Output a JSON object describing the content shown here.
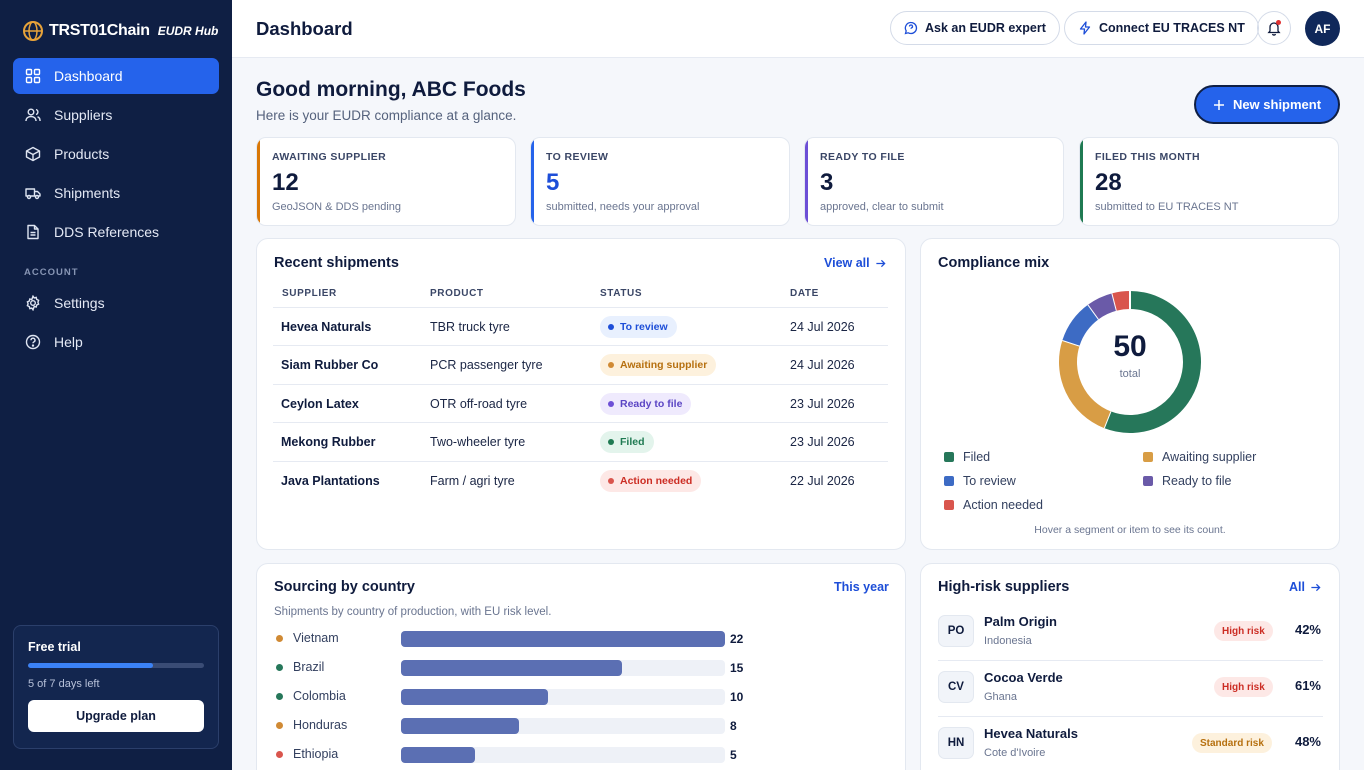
{
  "app": {
    "brand": "TRST01Chain",
    "product": "EUDR Hub"
  },
  "sidebar": {
    "items": [
      {
        "label": "Dashboard",
        "icon": "grid-icon"
      },
      {
        "label": "Suppliers",
        "icon": "users-icon"
      },
      {
        "label": "Products",
        "icon": "box-icon"
      },
      {
        "label": "Shipments",
        "icon": "truck-icon"
      },
      {
        "label": "DDS References",
        "icon": "document-icon"
      }
    ],
    "account_label": "ACCOUNT",
    "account_items": [
      {
        "label": "Settings",
        "icon": "gear-icon"
      },
      {
        "label": "Help",
        "icon": "help-icon"
      }
    ],
    "trial": {
      "title": "Free trial",
      "progress": 0.71,
      "days_text": "5 of 7 days left",
      "button": "Upgrade plan"
    }
  },
  "header": {
    "title": "Dashboard",
    "ask_expert": "Ask an EUDR expert",
    "connect": "Connect EU TRACES NT",
    "avatar": "AF"
  },
  "greeting": {
    "title": "Good morning, ABC Foods",
    "subtitle": "Here is your EUDR compliance at a glance.",
    "new_shipment": "New shipment"
  },
  "stats": [
    {
      "label": "AWAITING SUPPLIER",
      "value": "12",
      "desc": "GeoJSON & DDS pending",
      "color": "#d97706"
    },
    {
      "label": "TO REVIEW",
      "value": "5",
      "desc": "submitted, needs your approval",
      "color": "#2563eb"
    },
    {
      "label": "READY TO FILE",
      "value": "3",
      "desc": "approved, clear to submit",
      "color": "#6d4fd6"
    },
    {
      "label": "FILED THIS MONTH",
      "value": "28",
      "desc": "submitted to EU TRACES NT",
      "color": "#1f7a52"
    }
  ],
  "recent": {
    "title": "Recent shipments",
    "view_all": "View all",
    "columns": [
      "SUPPLIER",
      "PRODUCT",
      "STATUS",
      "DATE"
    ],
    "rows": [
      {
        "supplier": "Hevea Naturals",
        "product": "TBR truck tyre",
        "status": "To review",
        "date": "24 Jul 2026"
      },
      {
        "supplier": "Siam Rubber Co",
        "product": "PCR passenger tyre",
        "status": "Awaiting supplier",
        "date": "24 Jul 2026"
      },
      {
        "supplier": "Ceylon Latex",
        "product": "OTR off-road tyre",
        "status": "Ready to file",
        "date": "23 Jul 2026"
      },
      {
        "supplier": "Mekong Rubber",
        "product": "Two-wheeler tyre",
        "status": "Filed",
        "date": "23 Jul 2026"
      },
      {
        "supplier": "Java Plantations",
        "product": "Farm / agri tyre",
        "status": "Action needed",
        "date": "22 Jul 2026"
      }
    ]
  },
  "compliance": {
    "title": "Compliance mix",
    "total": "50",
    "total_label": "total",
    "hint": "Hover a segment or item to see its count.",
    "legend": [
      "Filed",
      "Awaiting supplier",
      "To review",
      "Ready to file",
      "Action needed"
    ]
  },
  "chart_data": {
    "type": "pie",
    "categories": [
      "Filed",
      "Awaiting supplier",
      "To review",
      "Ready to file",
      "Action needed"
    ],
    "values": [
      28,
      12,
      5,
      3,
      2
    ],
    "colors": [
      "#26775a",
      "#d89d45",
      "#3d6bc4",
      "#6a5aa8",
      "#d9554d"
    ],
    "title": "Compliance mix"
  },
  "sourcing": {
    "title": "Sourcing by country",
    "period": "This year",
    "subtitle": "Shipments by country of production, with EU risk level.",
    "max": 22,
    "countries": [
      {
        "name": "Vietnam",
        "value": 22,
        "dot": "#d08a34"
      },
      {
        "name": "Brazil",
        "value": 15,
        "dot": "#26775a"
      },
      {
        "name": "Colombia",
        "value": 10,
        "dot": "#26775a"
      },
      {
        "name": "Honduras",
        "value": 8,
        "dot": "#d08a34"
      },
      {
        "name": "Ethiopia",
        "value": 5,
        "dot": "#d9554d"
      }
    ]
  },
  "highrisk": {
    "title": "High-risk suppliers",
    "all": "All",
    "rows": [
      {
        "initials": "PO",
        "name": "Palm Origin",
        "country": "Indonesia",
        "risk": "High risk",
        "pct": "42%"
      },
      {
        "initials": "CV",
        "name": "Cocoa Verde",
        "country": "Ghana",
        "risk": "High risk",
        "pct": "61%"
      },
      {
        "initials": "HN",
        "name": "Hevea Naturals",
        "country": "Cote d'Ivoire",
        "risk": "Standard risk",
        "pct": "48%"
      }
    ]
  },
  "colors": {
    "accent": "#2563eb",
    "sidebar": "#0f1f44"
  }
}
